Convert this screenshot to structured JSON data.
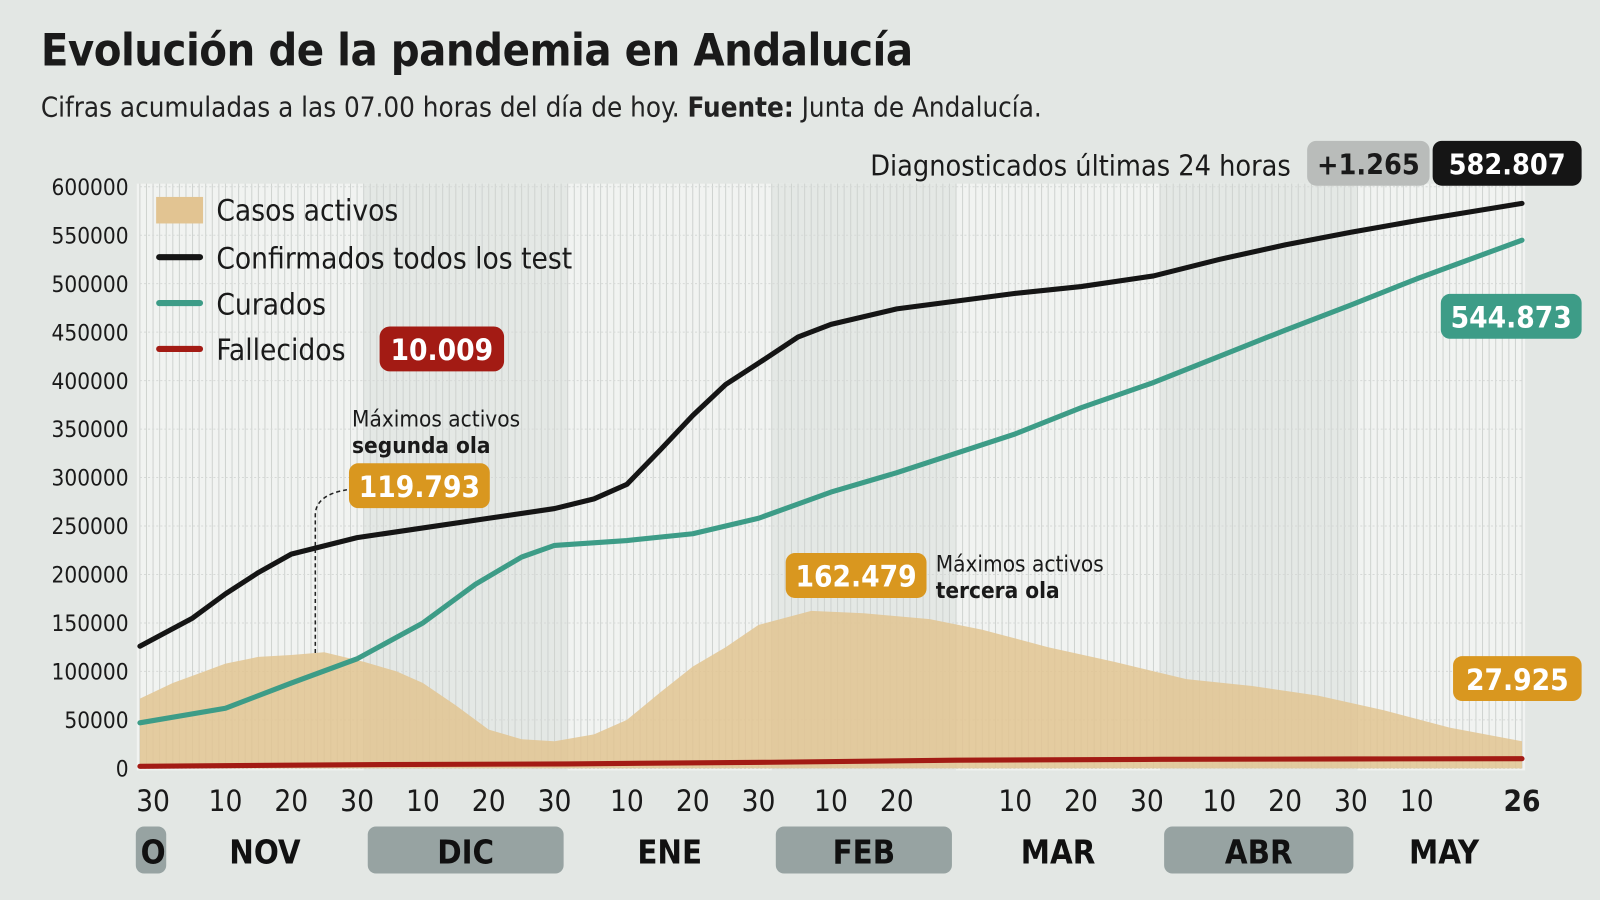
{
  "title": "Evolución de la pandemia en Andalucía",
  "subtitle": "Cifras acumuladas a las 07.00 horas del día de hoy.",
  "source_label": "Fuente:",
  "source": "Junta de Andalucía.",
  "header_badge": {
    "label": "Diagnosticados últimas 24 horas",
    "delta": "+1.265",
    "total": "582.807"
  },
  "colors": {
    "activos": "#e2c492",
    "confirmados": "#151515",
    "curados": "#3d9c87",
    "fallecidos": "#a31b14",
    "activos_badge": "#d9971f",
    "background": "#e3e7e4"
  },
  "chart_data": {
    "type": "line",
    "ylim": [
      0,
      600000
    ],
    "yticks": [
      "600000",
      "550000",
      "500000",
      "450000",
      "400000",
      "350000",
      "300000",
      "250000",
      "200000",
      "150000",
      "100000",
      "50000",
      "0"
    ],
    "xlim": [
      "2020-10-28",
      "2021-05-26"
    ],
    "xticks": [
      {
        "date": "2020-10-30",
        "label": "30"
      },
      {
        "date": "2020-11-10",
        "label": "10"
      },
      {
        "date": "2020-11-20",
        "label": "20"
      },
      {
        "date": "2020-11-30",
        "label": "30"
      },
      {
        "date": "2020-12-10",
        "label": "10"
      },
      {
        "date": "2020-12-20",
        "label": "20"
      },
      {
        "date": "2020-12-30",
        "label": "30"
      },
      {
        "date": "2021-01-10",
        "label": "10"
      },
      {
        "date": "2021-01-20",
        "label": "20"
      },
      {
        "date": "2021-01-30",
        "label": "30"
      },
      {
        "date": "2021-02-10",
        "label": "10"
      },
      {
        "date": "2021-02-20",
        "label": "20"
      },
      {
        "date": "2021-03-10",
        "label": "10"
      },
      {
        "date": "2021-03-20",
        "label": "20"
      },
      {
        "date": "2021-03-30",
        "label": "30"
      },
      {
        "date": "2021-04-10",
        "label": "10"
      },
      {
        "date": "2021-04-20",
        "label": "20"
      },
      {
        "date": "2021-04-30",
        "label": "30"
      },
      {
        "date": "2021-05-10",
        "label": "10"
      },
      {
        "date": "2021-05-26",
        "label": "26"
      }
    ],
    "months": [
      {
        "label": "O",
        "shaded": true
      },
      {
        "label": "NOV",
        "shaded": false
      },
      {
        "label": "DIC",
        "shaded": true
      },
      {
        "label": "ENE",
        "shaded": false
      },
      {
        "label": "FEB",
        "shaded": true
      },
      {
        "label": "MAR",
        "shaded": false
      },
      {
        "label": "ABR",
        "shaded": true
      },
      {
        "label": "MAY",
        "shaded": false
      }
    ],
    "series": [
      {
        "name": "Casos activos",
        "kind": "area",
        "points": [
          [
            "2020-10-28",
            72000
          ],
          [
            "2020-11-02",
            88000
          ],
          [
            "2020-11-06",
            98000
          ],
          [
            "2020-11-10",
            108000
          ],
          [
            "2020-11-15",
            115000
          ],
          [
            "2020-11-20",
            117000
          ],
          [
            "2020-11-25",
            119793
          ],
          [
            "2020-12-01",
            110000
          ],
          [
            "2020-12-06",
            100000
          ],
          [
            "2020-12-10",
            88000
          ],
          [
            "2020-12-15",
            65000
          ],
          [
            "2020-12-20",
            40000
          ],
          [
            "2020-12-25",
            30000
          ],
          [
            "2020-12-30",
            28000
          ],
          [
            "2021-01-05",
            35000
          ],
          [
            "2021-01-10",
            50000
          ],
          [
            "2021-01-15",
            78000
          ],
          [
            "2021-01-20",
            105000
          ],
          [
            "2021-01-25",
            125000
          ],
          [
            "2021-01-30",
            148000
          ],
          [
            "2021-02-07",
            162479
          ],
          [
            "2021-02-15",
            160000
          ],
          [
            "2021-02-25",
            154000
          ],
          [
            "2021-03-05",
            143000
          ],
          [
            "2021-03-15",
            125000
          ],
          [
            "2021-03-25",
            110000
          ],
          [
            "2021-04-05",
            92000
          ],
          [
            "2021-04-15",
            85000
          ],
          [
            "2021-04-25",
            75000
          ],
          [
            "2021-05-05",
            60000
          ],
          [
            "2021-05-15",
            42000
          ],
          [
            "2021-05-26",
            27925
          ]
        ]
      },
      {
        "name": "Confirmados todos los test",
        "kind": "line",
        "points": [
          [
            "2020-10-28",
            126000
          ],
          [
            "2020-11-05",
            155000
          ],
          [
            "2020-11-10",
            180000
          ],
          [
            "2020-11-15",
            202000
          ],
          [
            "2020-11-20",
            221000
          ],
          [
            "2020-11-30",
            238000
          ],
          [
            "2020-12-10",
            248000
          ],
          [
            "2020-12-20",
            258000
          ],
          [
            "2020-12-30",
            268000
          ],
          [
            "2021-01-05",
            278000
          ],
          [
            "2021-01-10",
            293000
          ],
          [
            "2021-01-15",
            328000
          ],
          [
            "2021-01-20",
            364000
          ],
          [
            "2021-01-25",
            396000
          ],
          [
            "2021-01-30",
            418000
          ],
          [
            "2021-02-05",
            445000
          ],
          [
            "2021-02-10",
            458000
          ],
          [
            "2021-02-20",
            474000
          ],
          [
            "2021-03-01",
            482000
          ],
          [
            "2021-03-10",
            490000
          ],
          [
            "2021-03-20",
            497000
          ],
          [
            "2021-03-31",
            508000
          ],
          [
            "2021-04-10",
            525000
          ],
          [
            "2021-04-20",
            540000
          ],
          [
            "2021-04-30",
            553000
          ],
          [
            "2021-05-10",
            565000
          ],
          [
            "2021-05-26",
            582807
          ]
        ]
      },
      {
        "name": "Curados",
        "kind": "line",
        "points": [
          [
            "2020-10-28",
            47000
          ],
          [
            "2020-11-10",
            62000
          ],
          [
            "2020-11-20",
            88000
          ],
          [
            "2020-11-30",
            113000
          ],
          [
            "2020-12-10",
            150000
          ],
          [
            "2020-12-18",
            190000
          ],
          [
            "2020-12-25",
            218000
          ],
          [
            "2020-12-30",
            230000
          ],
          [
            "2021-01-10",
            235000
          ],
          [
            "2021-01-20",
            242000
          ],
          [
            "2021-01-30",
            258000
          ],
          [
            "2021-02-10",
            285000
          ],
          [
            "2021-02-20",
            305000
          ],
          [
            "2021-03-01",
            325000
          ],
          [
            "2021-03-10",
            345000
          ],
          [
            "2021-03-20",
            372000
          ],
          [
            "2021-03-31",
            398000
          ],
          [
            "2021-04-10",
            425000
          ],
          [
            "2021-04-20",
            452000
          ],
          [
            "2021-04-30",
            478000
          ],
          [
            "2021-05-10",
            505000
          ],
          [
            "2021-05-26",
            544873
          ]
        ]
      },
      {
        "name": "Fallecidos",
        "kind": "line",
        "points": [
          [
            "2020-10-28",
            2100
          ],
          [
            "2020-12-01",
            3800
          ],
          [
            "2021-01-01",
            4600
          ],
          [
            "2021-02-01",
            6300
          ],
          [
            "2021-03-01",
            8400
          ],
          [
            "2021-04-01",
            9300
          ],
          [
            "2021-05-01",
            9700
          ],
          [
            "2021-05-26",
            10009
          ]
        ]
      }
    ],
    "legend": {
      "placement": "top-left",
      "fallecidos_badge": "10.009"
    },
    "annotations": [
      {
        "line1": "Máximos activos",
        "line2": "segunda ola",
        "value": "119.793",
        "date": "2020-11-20"
      },
      {
        "line1": "Máximos activos",
        "line2": "tercera ola",
        "value": "162.479"
      }
    ],
    "end_labels": {
      "curados": "544.873",
      "activos": "27.925"
    }
  }
}
